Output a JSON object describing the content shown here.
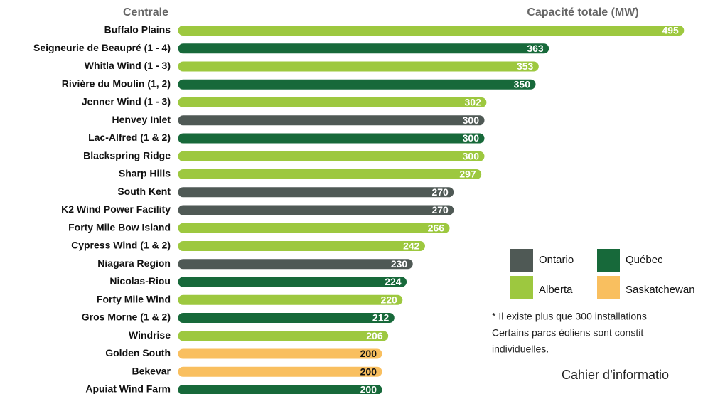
{
  "chart_data": {
    "type": "bar",
    "category_header": "Centrale",
    "value_header": "Capacité totale (MW)",
    "categories": [
      "Buffalo Plains",
      "Seigneurie de Beaupré (1 - 4)",
      "Whitla Wind (1 - 3)",
      "Rivière du Moulin (1, 2)",
      "Jenner Wind (1 - 3)",
      "Henvey Inlet",
      "Lac-Alfred (1 & 2)",
      "Blackspring Ridge",
      "Sharp Hills",
      "South Kent",
      "K2 Wind Power Facility",
      "Forty Mile Bow Island",
      "Cypress Wind (1 & 2)",
      "Niagara Region",
      "Nicolas-Riou",
      "Forty Mile Wind",
      "Gros Morne (1 & 2)",
      "Windrise",
      "Golden South",
      "Bekevar",
      "Apuiat Wind Farm"
    ],
    "values": [
      495,
      363,
      353,
      350,
      302,
      300,
      300,
      300,
      297,
      270,
      270,
      266,
      242,
      230,
      224,
      220,
      212,
      206,
      200,
      200,
      200
    ],
    "colors": [
      "#9dc83f",
      "#17693a",
      "#9dc83f",
      "#17693a",
      "#9dc83f",
      "#4f5955",
      "#17693a",
      "#9dc83f",
      "#9dc83f",
      "#4f5955",
      "#4f5955",
      "#9dc83f",
      "#9dc83f",
      "#4f5955",
      "#17693a",
      "#9dc83f",
      "#17693a",
      "#9dc83f",
      "#f9bf5f",
      "#f9bf5f",
      "#17693a"
    ],
    "xlim": [
      0,
      500
    ],
    "legend": [
      {
        "name": "Ontario",
        "color": "#4f5955"
      },
      {
        "name": "Québec",
        "color": "#17693a"
      },
      {
        "name": "Alberta",
        "color": "#9dc83f"
      },
      {
        "name": "Saskatchewan",
        "color": "#f9bf5f"
      }
    ],
    "notes": [
      "* Il existe plus que 300 installations",
      "Certains parcs éoliens sont constit",
      "individuelles."
    ],
    "footer": "Cahier d’informatio"
  }
}
